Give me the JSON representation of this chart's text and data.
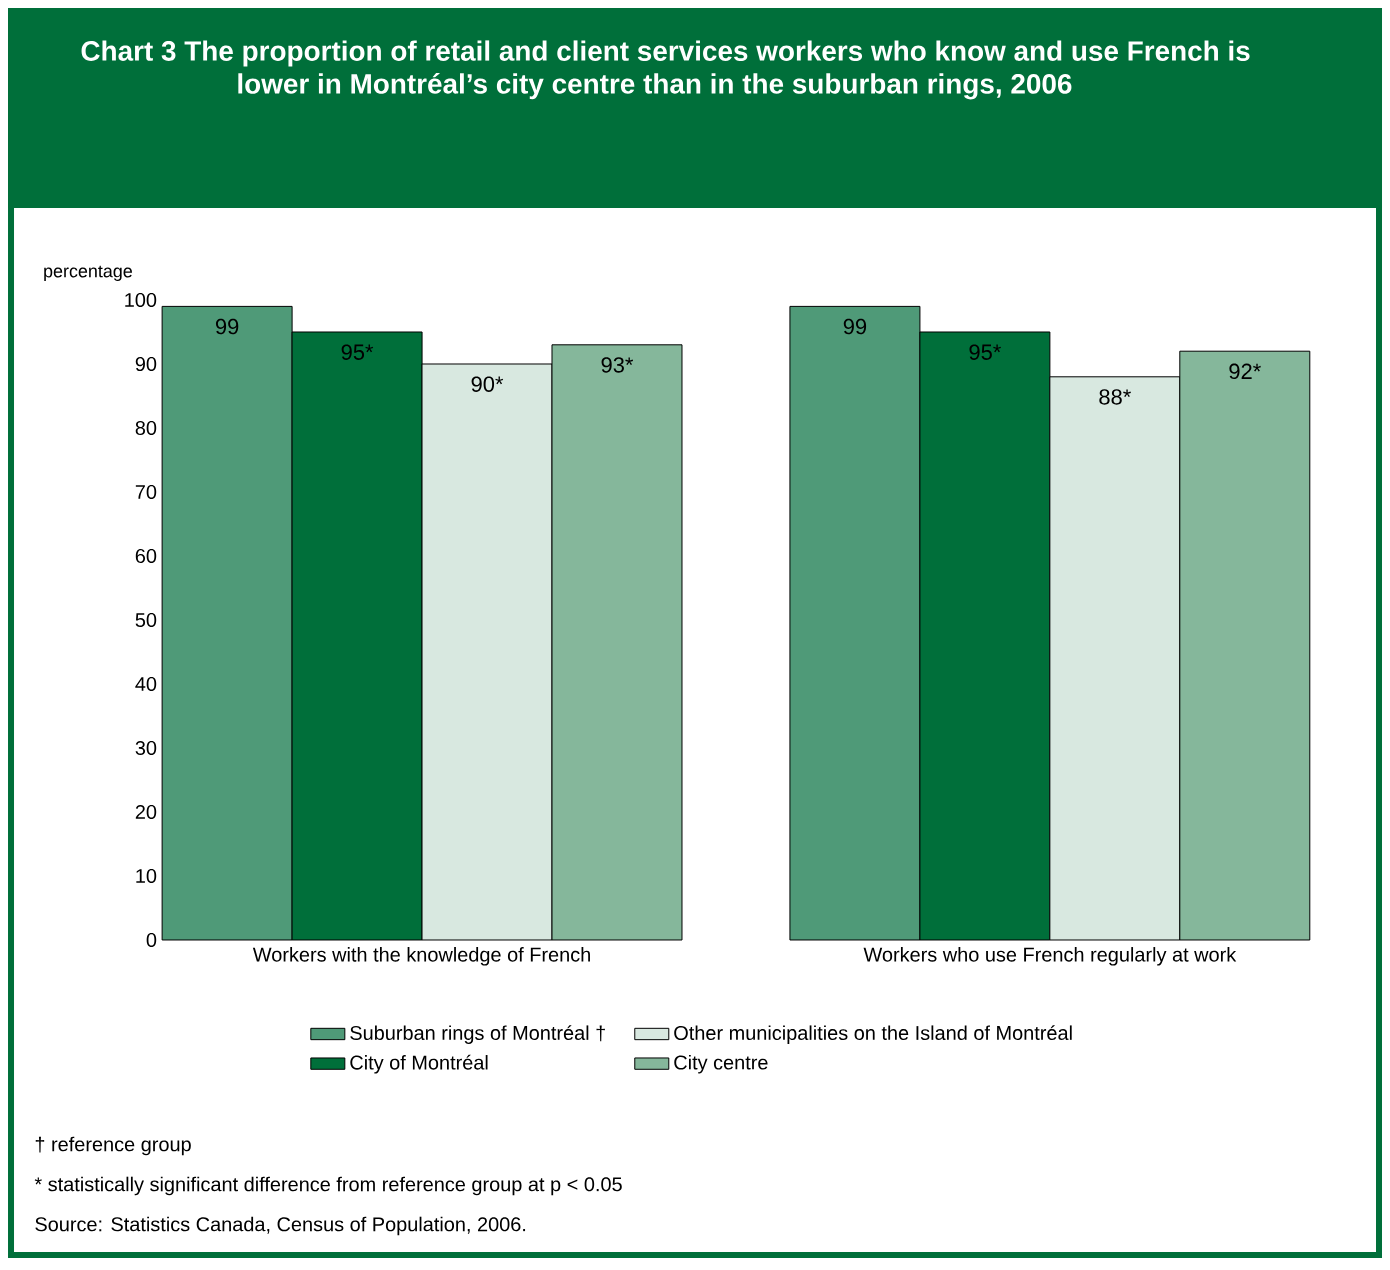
{
  "chart_data": {
    "type": "bar",
    "title": "Chart 3 The proportion of retail and client services workers who know and use French is lower in Montréal’s city centre than in the suburban rings, 2006",
    "ylabel": "percentage",
    "categories": [
      "Workers with the knowledge of French",
      "Workers who use French regularly at work"
    ],
    "series": [
      {
        "name": "Suburban rings of Montréal †",
        "color": "#4f9a78",
        "values": [
          99,
          99
        ],
        "value_labels": [
          "99",
          "99"
        ]
      },
      {
        "name": "City of Montréal",
        "color": "#006f3a",
        "values": [
          95,
          95
        ],
        "value_labels": [
          "95*",
          "95*"
        ]
      },
      {
        "name": "Other municipalities on the Island of Montréal",
        "color": "#d8e8e0",
        "values": [
          90,
          88
        ],
        "value_labels": [
          "90*",
          "88*"
        ]
      },
      {
        "name": "City centre",
        "color": "#85b79b",
        "values": [
          93,
          92
        ],
        "value_labels": [
          "93*",
          "92*"
        ]
      }
    ],
    "ylim": [
      0,
      100
    ],
    "yticks": [
      0,
      10,
      20,
      30,
      40,
      50,
      60,
      70,
      80,
      90,
      100
    ],
    "legend": "bottom",
    "annotations": [
      "† reference group",
      "* statistically significant difference from reference group at p < 0.05",
      "Source: Statistics Canada, Census of Population, 2006."
    ]
  }
}
